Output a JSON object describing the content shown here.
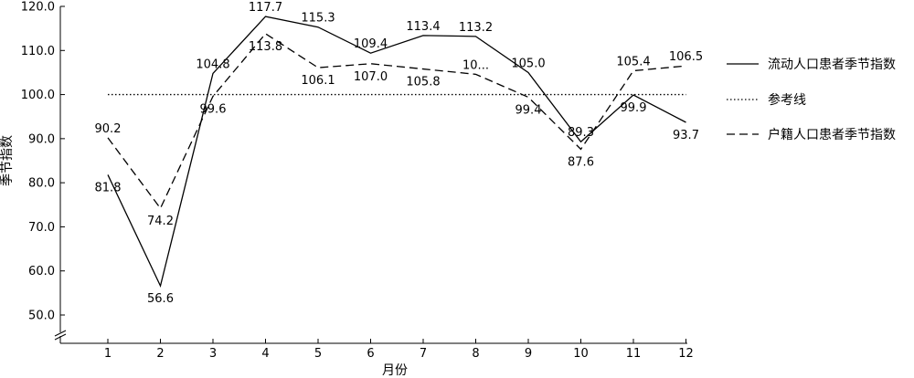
{
  "chart_data": {
    "type": "line",
    "title": "",
    "xlabel": "月份",
    "ylabel": "季节指数",
    "categories": [
      "1",
      "2",
      "3",
      "4",
      "5",
      "6",
      "7",
      "8",
      "9",
      "10",
      "11",
      "12"
    ],
    "ylim": [
      45,
      120
    ],
    "y_ticks": [
      "50.0",
      "60.0",
      "70.0",
      "80.0",
      "90.0",
      "100.0",
      "110.0",
      "120.0"
    ],
    "y_axis_break": true,
    "grid": false,
    "legend_position": "right",
    "series": [
      {
        "name": "流动人口患者季节指数",
        "style": "solid",
        "values": [
          81.8,
          56.6,
          104.8,
          117.7,
          115.3,
          109.4,
          113.4,
          113.2,
          105.0,
          89.3,
          99.9,
          93.7
        ],
        "labels": [
          "81.8",
          "56.6",
          "104.8",
          "117.7",
          "115.3",
          "109.4",
          "113.4",
          "113.2",
          "105.0",
          "89.3",
          "99.9",
          "93.7"
        ],
        "label_side": [
          "below",
          "below",
          "above",
          "above",
          "above",
          "above",
          "above",
          "above",
          "above",
          "above",
          "below",
          "below"
        ]
      },
      {
        "name": "参考线",
        "style": "dotted",
        "values": [
          100,
          100,
          100,
          100,
          100,
          100,
          100,
          100,
          100,
          100,
          100,
          100
        ],
        "labels": [],
        "label_side": []
      },
      {
        "name": "户籍人口患者季节指数",
        "style": "dashed",
        "values": [
          90.2,
          74.2,
          99.6,
          113.8,
          106.1,
          107.0,
          105.8,
          104.6,
          99.4,
          87.6,
          105.4,
          106.5
        ],
        "labels": [
          "90.2",
          "74.2",
          "99.6",
          "113.8",
          "106.1",
          "107.0",
          "105.8",
          "10...",
          "99.4",
          "87.6",
          "105.4",
          "106.5"
        ],
        "label_side": [
          "above",
          "below",
          "below",
          "below",
          "below",
          "below",
          "below",
          "above",
          "below",
          "below",
          "above",
          "above"
        ]
      }
    ],
    "colors": {
      "line": "#000000",
      "background": "#ffffff"
    }
  }
}
